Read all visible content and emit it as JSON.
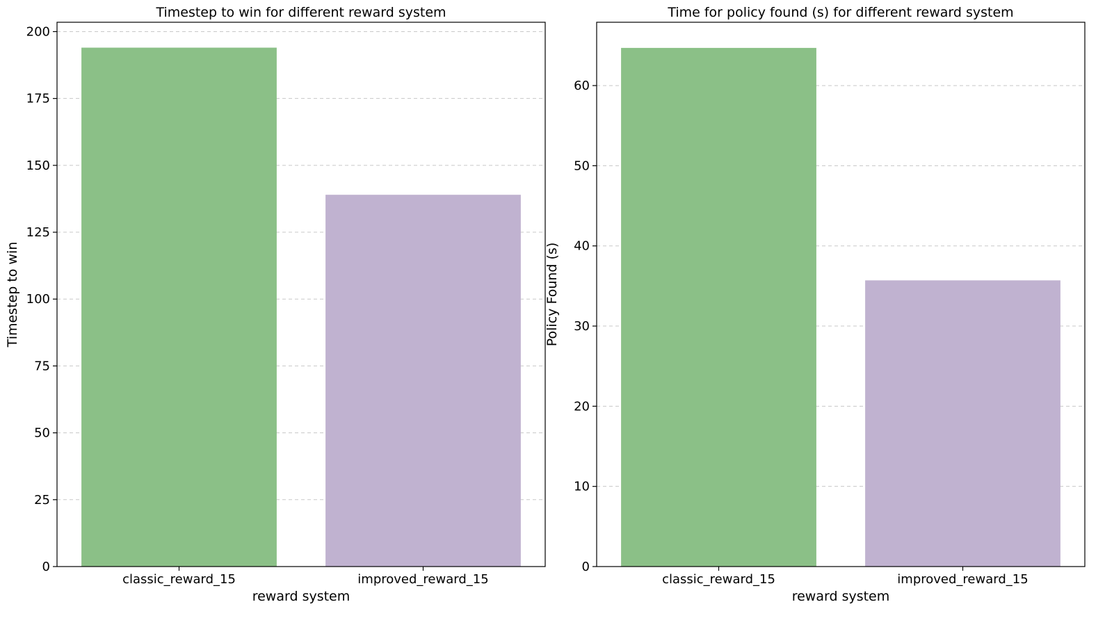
{
  "colors": {
    "classic": "#8bc087",
    "improved": "#c0b2d0"
  },
  "chart_data": [
    {
      "type": "bar",
      "title": "Timestep to win for different reward system",
      "xlabel": "reward system",
      "ylabel": "Timestep to win",
      "categories": [
        "classic_reward_15",
        "improved_reward_15"
      ],
      "values": [
        194,
        139
      ],
      "ylim": [
        0,
        203.5
      ],
      "yticks": [
        0,
        25,
        50,
        75,
        100,
        125,
        150,
        175,
        200
      ],
      "grid": "y-dashed",
      "bar_colors": [
        "#8bc087",
        "#c0b2d0"
      ]
    },
    {
      "type": "bar",
      "title": "Time for policy found (s) for different reward system",
      "xlabel": "reward system",
      "ylabel": "Policy Found (s)",
      "categories": [
        "classic_reward_15",
        "improved_reward_15"
      ],
      "values": [
        64.7,
        35.7
      ],
      "ylim": [
        0,
        67.9
      ],
      "yticks": [
        0,
        10,
        20,
        30,
        40,
        50,
        60
      ],
      "grid": "y-dashed",
      "bar_colors": [
        "#8bc087",
        "#c0b2d0"
      ]
    }
  ]
}
